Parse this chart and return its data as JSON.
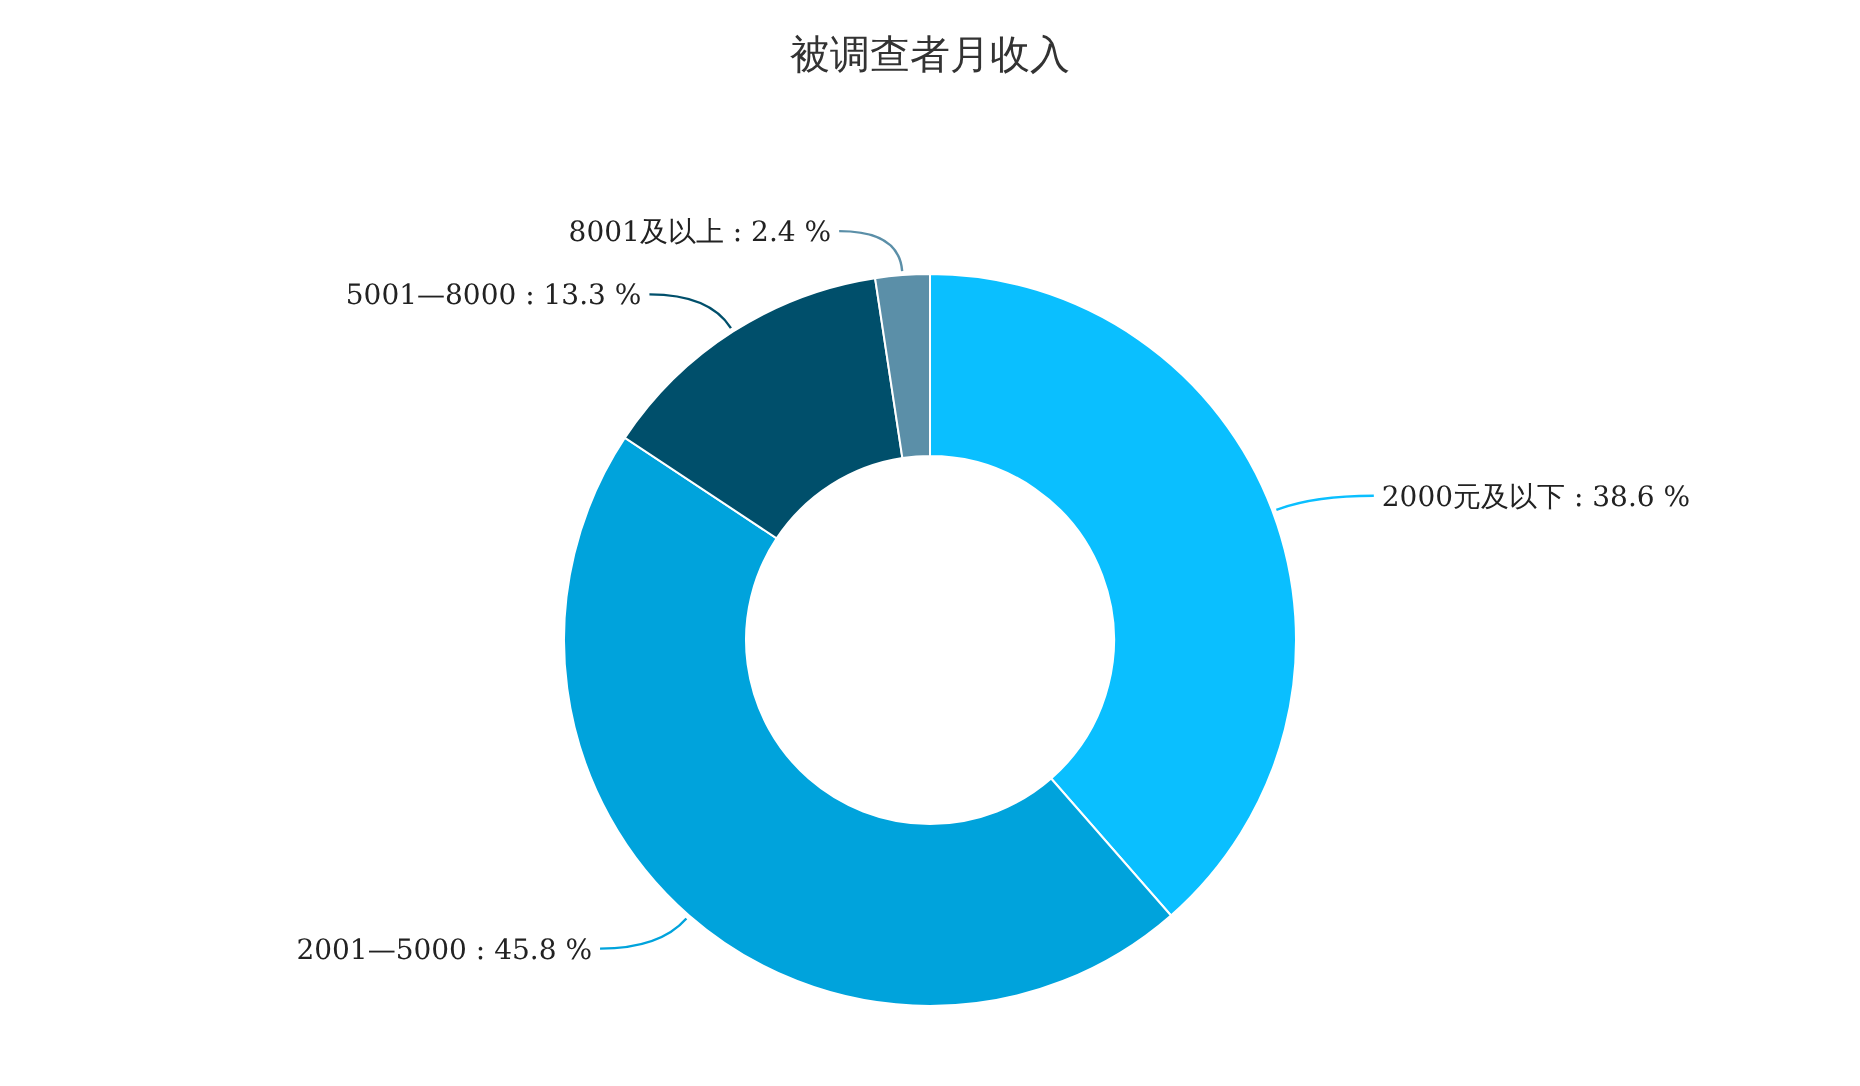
{
  "chart_data": {
    "type": "donut",
    "title": "被调查者月收入",
    "categories": [
      "2000元及以下",
      "2001—5000",
      "5001—8000",
      "8001及以上"
    ],
    "values": [
      38.6,
      45.8,
      13.3,
      2.4
    ],
    "value_labels": [
      "38.6 %",
      "45.8 %",
      "13.3 %",
      "2.4 %"
    ],
    "colors": [
      "#0abfff",
      "#00a3dc",
      "#004f6b",
      "#5b8fa8"
    ]
  }
}
